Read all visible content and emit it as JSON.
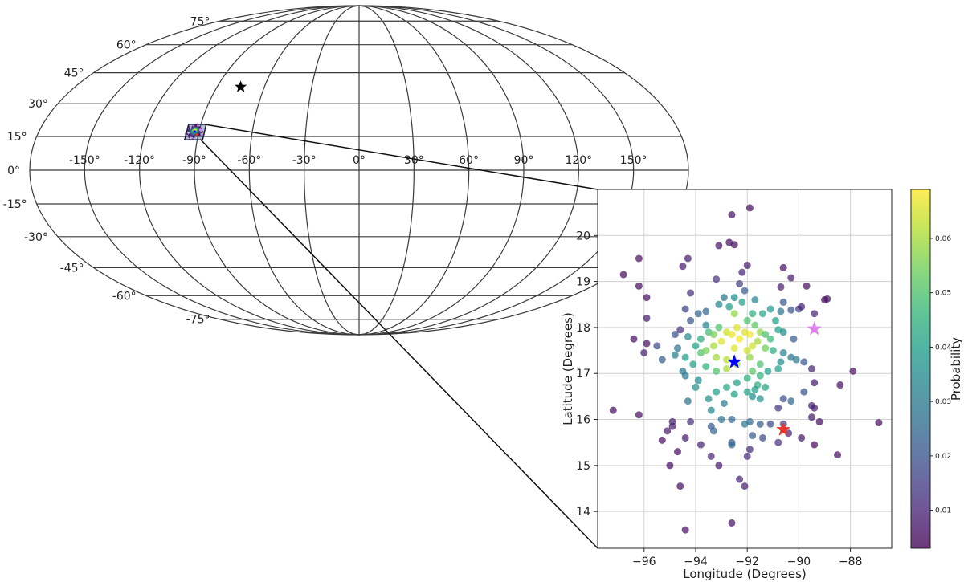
{
  "chart_data": [
    {
      "type": "map",
      "projection": "mollweide",
      "grid": true,
      "lon_ticks": [
        "-150°",
        "-120°",
        "-90°",
        "-60°",
        "-30°",
        "0°",
        "30°",
        "60°",
        "90°",
        "120°",
        "150°"
      ],
      "lon_tick_values": [
        -150,
        -120,
        -90,
        -60,
        -30,
        0,
        30,
        60,
        90,
        120,
        150
      ],
      "lat_ticks": [
        "-75°",
        "-60°",
        "-45°",
        "-30°",
        "-15°",
        "0°",
        "15°",
        "30°",
        "45°",
        "60°",
        "75°"
      ],
      "lat_tick_values": [
        -75,
        -60,
        -45,
        -30,
        -15,
        0,
        15,
        30,
        45,
        60,
        75
      ],
      "markers": [
        {
          "lon": -75,
          "lat": 38,
          "marker": "star",
          "color": "#000000"
        }
      ],
      "highlight_region": {
        "lon_range": [
          -97,
          -87
        ],
        "lat_range": [
          13.5,
          20.5
        ]
      }
    },
    {
      "type": "scatter",
      "xlabel": "Longitude (Degrees)",
      "ylabel": "Latitude (Degrees)",
      "xlim": [
        -97.8,
        -86.4
      ],
      "ylim": [
        13.2,
        21.0
      ],
      "xticks": [
        -96,
        -94,
        -92,
        -90,
        -88
      ],
      "yticks": [
        14,
        15,
        16,
        17,
        18,
        19,
        20
      ],
      "xtick_labels": [
        "−96",
        "−94",
        "−92",
        "−90",
        "−88"
      ],
      "ytick_labels": [
        "14",
        "15",
        "16",
        "17",
        "18",
        "19",
        "20"
      ],
      "grid": true,
      "colorbar": {
        "label": "Probability",
        "colormap": "viridis",
        "range": [
          0.003,
          0.069
        ],
        "ticks": [
          0.01,
          0.02,
          0.03,
          0.04,
          0.05,
          0.06
        ],
        "tick_labels": [
          "0.01",
          "0.02",
          "0.03",
          "0.04",
          "0.05",
          "0.06"
        ]
      },
      "stars": [
        {
          "lon": -92.5,
          "lat": 17.25,
          "color": "#0000ff"
        },
        {
          "lon": -90.6,
          "lat": 15.78,
          "color": "#e8372a"
        },
        {
          "lon": -89.4,
          "lat": 17.97,
          "color": "#dd82e8"
        }
      ],
      "points": [
        [
          -92.6,
          20.45,
          0.006
        ],
        [
          -91.9,
          20.6,
          0.006
        ],
        [
          -92.7,
          19.85,
          0.006
        ],
        [
          -93.1,
          19.78,
          0.006
        ],
        [
          -92.5,
          19.8,
          0.006
        ],
        [
          -94.3,
          19.5,
          0.008
        ],
        [
          -96.2,
          19.5,
          0.006
        ],
        [
          -92.0,
          19.35,
          0.008
        ],
        [
          -94.5,
          19.33,
          0.008
        ],
        [
          -90.6,
          19.3,
          0.006
        ],
        [
          -96.8,
          19.15,
          0.006
        ],
        [
          -92.2,
          19.2,
          0.01
        ],
        [
          -90.3,
          19.08,
          0.008
        ],
        [
          -93.2,
          19.05,
          0.012
        ],
        [
          -92.3,
          18.95,
          0.015
        ],
        [
          -96.2,
          18.9,
          0.006
        ],
        [
          -90.7,
          18.88,
          0.008
        ],
        [
          -89.7,
          18.9,
          0.006
        ],
        [
          -92.1,
          18.8,
          0.022
        ],
        [
          -94.2,
          18.75,
          0.012
        ],
        [
          -95.9,
          18.65,
          0.006
        ],
        [
          -92.9,
          18.65,
          0.028
        ],
        [
          -92.5,
          18.65,
          0.035
        ],
        [
          -91.7,
          18.6,
          0.033
        ],
        [
          -90.6,
          18.55,
          0.022
        ],
        [
          -93.1,
          18.5,
          0.032
        ],
        [
          -92.2,
          18.55,
          0.04
        ],
        [
          -89.0,
          18.6,
          0.006
        ],
        [
          -88.9,
          18.62,
          0.006
        ],
        [
          -94.4,
          18.4,
          0.016
        ],
        [
          -92.7,
          18.45,
          0.04
        ],
        [
          -91.1,
          18.4,
          0.038
        ],
        [
          -93.6,
          18.35,
          0.024
        ],
        [
          -91.8,
          18.3,
          0.045
        ],
        [
          -90.3,
          18.38,
          0.02
        ],
        [
          -90.0,
          18.4,
          0.015
        ],
        [
          -89.9,
          18.45,
          0.01
        ],
        [
          -93.9,
          18.3,
          0.024
        ],
        [
          -92.5,
          18.3,
          0.058
        ],
        [
          -91.4,
          18.3,
          0.042
        ],
        [
          -90.7,
          18.35,
          0.028
        ],
        [
          -95.9,
          18.2,
          0.008
        ],
        [
          -94.2,
          18.15,
          0.02
        ],
        [
          -92.0,
          18.15,
          0.05
        ],
        [
          -90.9,
          18.15,
          0.04
        ],
        [
          -89.4,
          18.3,
          0.01
        ],
        [
          -93.6,
          18.05,
          0.032
        ],
        [
          -93.1,
          18.0,
          0.05
        ],
        [
          -92.4,
          18.0,
          0.066
        ],
        [
          -91.7,
          18.05,
          0.052
        ],
        [
          -94.6,
          17.95,
          0.012
        ],
        [
          -94.8,
          17.85,
          0.02
        ],
        [
          -93.5,
          17.9,
          0.048
        ],
        [
          -92.8,
          17.9,
          0.064
        ],
        [
          -92.1,
          17.9,
          0.066
        ],
        [
          -91.5,
          17.9,
          0.058
        ],
        [
          -90.8,
          17.95,
          0.04
        ],
        [
          -90.6,
          17.9,
          0.035
        ],
        [
          -93.3,
          17.85,
          0.055
        ],
        [
          -92.6,
          17.85,
          0.067
        ],
        [
          -91.9,
          17.85,
          0.068
        ],
        [
          -91.3,
          17.85,
          0.05
        ],
        [
          -96.4,
          17.75,
          0.006
        ],
        [
          -94.3,
          17.8,
          0.035
        ],
        [
          -93.8,
          17.75,
          0.044
        ],
        [
          -93.0,
          17.7,
          0.066
        ],
        [
          -92.3,
          17.75,
          0.068
        ],
        [
          -91.6,
          17.7,
          0.06
        ],
        [
          -91.1,
          17.75,
          0.048
        ],
        [
          -90.2,
          17.75,
          0.022
        ],
        [
          -95.9,
          17.65,
          0.006
        ],
        [
          -95.5,
          17.6,
          0.018
        ],
        [
          -94.0,
          17.6,
          0.04
        ],
        [
          -93.3,
          17.6,
          0.06
        ],
        [
          -92.5,
          17.55,
          0.066
        ],
        [
          -91.8,
          17.6,
          0.064
        ],
        [
          -91.3,
          17.55,
          0.055
        ],
        [
          -94.7,
          17.55,
          0.028
        ],
        [
          -93.8,
          17.45,
          0.05
        ],
        [
          -93.6,
          17.5,
          0.055
        ],
        [
          -92.0,
          17.5,
          0.064
        ],
        [
          -91.0,
          17.5,
          0.044
        ],
        [
          -90.6,
          17.45,
          0.032
        ],
        [
          -96.0,
          17.45,
          0.008
        ],
        [
          -94.8,
          17.4,
          0.032
        ],
        [
          -94.4,
          17.35,
          0.04
        ],
        [
          -93.2,
          17.35,
          0.06
        ],
        [
          -92.8,
          17.3,
          0.062
        ],
        [
          -91.9,
          17.35,
          0.058
        ],
        [
          -90.3,
          17.35,
          0.028
        ],
        [
          -90.1,
          17.3,
          0.03
        ],
        [
          -95.3,
          17.3,
          0.022
        ],
        [
          -94.1,
          17.2,
          0.04
        ],
        [
          -92.4,
          17.2,
          0.06
        ],
        [
          -91.5,
          17.2,
          0.05
        ],
        [
          -90.7,
          17.25,
          0.035
        ],
        [
          -89.8,
          17.25,
          0.02
        ],
        [
          -93.6,
          17.15,
          0.045
        ],
        [
          -92.8,
          17.1,
          0.06
        ],
        [
          -91.8,
          17.05,
          0.052
        ],
        [
          -94.5,
          17.05,
          0.03
        ],
        [
          -93.2,
          17.05,
          0.05
        ],
        [
          -91.2,
          17.05,
          0.04
        ],
        [
          -90.8,
          17.1,
          0.04
        ],
        [
          -89.5,
          17.1,
          0.01
        ],
        [
          -94.4,
          16.95,
          0.028
        ],
        [
          -92.0,
          16.9,
          0.045
        ],
        [
          -91.5,
          16.95,
          0.046
        ],
        [
          -93.9,
          16.85,
          0.035
        ],
        [
          -92.4,
          16.8,
          0.04
        ],
        [
          -91.6,
          16.75,
          0.045
        ],
        [
          -94.0,
          16.7,
          0.036
        ],
        [
          -92.8,
          16.7,
          0.042
        ],
        [
          -91.7,
          16.65,
          0.04
        ],
        [
          -91.3,
          16.7,
          0.042
        ],
        [
          -89.4,
          16.8,
          0.008
        ],
        [
          -93.2,
          16.6,
          0.04
        ],
        [
          -92.0,
          16.6,
          0.04
        ],
        [
          -92.5,
          16.55,
          0.04
        ],
        [
          -91.8,
          16.5,
          0.035
        ],
        [
          -89.8,
          16.6,
          0.02
        ],
        [
          -88.4,
          16.75,
          0.006
        ],
        [
          -87.9,
          17.05,
          0.006
        ],
        [
          -93.5,
          16.45,
          0.036
        ],
        [
          -91.5,
          16.45,
          0.036
        ],
        [
          -90.6,
          16.45,
          0.018
        ],
        [
          -90.3,
          16.4,
          0.024
        ],
        [
          -94.3,
          16.4,
          0.028
        ],
        [
          -92.9,
          16.35,
          0.03
        ],
        [
          -93.4,
          16.2,
          0.034
        ],
        [
          -90.8,
          16.25,
          0.014
        ],
        [
          -89.5,
          16.3,
          0.01
        ],
        [
          -89.4,
          16.25,
          0.008
        ],
        [
          -97.2,
          16.2,
          0.006
        ],
        [
          -96.2,
          16.1,
          0.006
        ],
        [
          -93.0,
          16.0,
          0.028
        ],
        [
          -92.6,
          16.0,
          0.025
        ],
        [
          -91.9,
          15.95,
          0.025
        ],
        [
          -94.2,
          15.95,
          0.012
        ],
        [
          -94.9,
          15.95,
          0.008
        ],
        [
          -89.5,
          16.05,
          0.008
        ],
        [
          -91.5,
          15.9,
          0.022
        ],
        [
          -91.1,
          15.9,
          0.018
        ],
        [
          -90.6,
          15.9,
          0.016
        ],
        [
          -93.4,
          15.85,
          0.022
        ],
        [
          -92.1,
          15.9,
          0.03
        ],
        [
          -94.9,
          15.85,
          0.008
        ],
        [
          -95.1,
          15.75,
          0.008
        ],
        [
          -89.2,
          15.95,
          0.006
        ],
        [
          -86.9,
          15.93,
          0.006
        ],
        [
          -93.3,
          15.75,
          0.024
        ],
        [
          -90.4,
          15.7,
          0.01
        ],
        [
          -89.9,
          15.6,
          0.008
        ],
        [
          -94.4,
          15.6,
          0.008
        ],
        [
          -95.3,
          15.55,
          0.006
        ],
        [
          -91.8,
          15.65,
          0.022
        ],
        [
          -91.4,
          15.6,
          0.018
        ],
        [
          -92.6,
          15.5,
          0.02
        ],
        [
          -92.6,
          15.45,
          0.025
        ],
        [
          -90.8,
          15.5,
          0.012
        ],
        [
          -89.4,
          15.45,
          0.006
        ],
        [
          -93.8,
          15.45,
          0.01
        ],
        [
          -91.9,
          15.35,
          0.012
        ],
        [
          -94.7,
          15.3,
          0.006
        ],
        [
          -93.4,
          15.2,
          0.01
        ],
        [
          -92.0,
          15.2,
          0.012
        ],
        [
          -88.5,
          15.23,
          0.006
        ],
        [
          -95.0,
          15.0,
          0.006
        ],
        [
          -93.1,
          15.0,
          0.008
        ],
        [
          -92.3,
          14.7,
          0.01
        ],
        [
          -92.1,
          14.55,
          0.008
        ],
        [
          -94.6,
          14.55,
          0.006
        ],
        [
          -92.6,
          13.75,
          0.006
        ],
        [
          -94.4,
          13.6,
          0.006
        ]
      ]
    }
  ]
}
